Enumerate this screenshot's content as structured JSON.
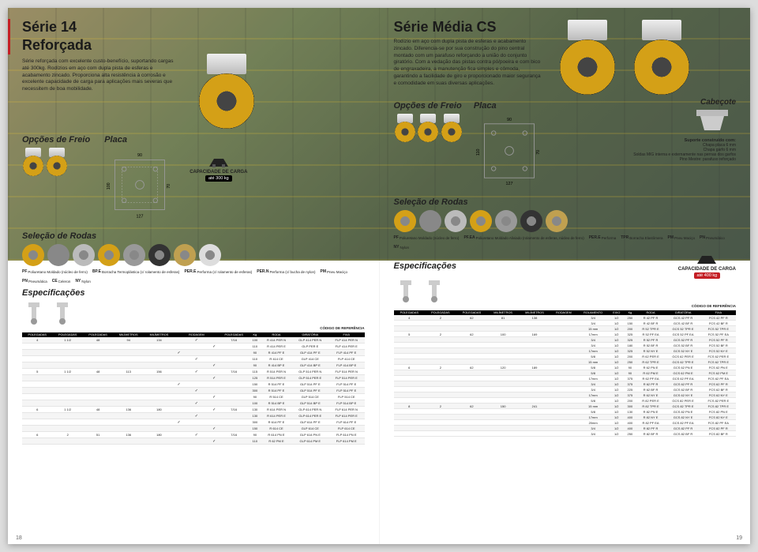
{
  "left": {
    "title1": "Série 14",
    "title2": "Reforçada",
    "intro": "Série reforçada com excelente custo-benefício, suportando cargas até 300kg. Rodízios em aço com dupla pista de esferas e acabamento zincado. Proporciona alta resistência à corrosão e excelente capacidade de carga para aplicações mais severas que necessitem de boa mobilidade.",
    "opcoes": "Opções de Freio",
    "placa": "Placa",
    "placa_w": "90",
    "placa_h": "100",
    "placa_holes_w": "127",
    "placa_holes_h": "70",
    "cap_label": "CAPACIDADE DE CARGA",
    "cap_value": "até 300 kg",
    "selecao": "Seleção de Rodas",
    "legend": [
      {
        "code": "PF",
        "desc": "Poliuretano Moldado (núcleo de ferro)"
      },
      {
        "code": "BP.E",
        "desc": "Borracha Termoplástica (c/ rolamento de esferas)"
      },
      {
        "code": "PER.E",
        "desc": "Performa (c/ rolamento de esferas)"
      },
      {
        "code": "PER.N",
        "desc": "Performa (c/ bucha de nylon)"
      },
      {
        "code": "PM",
        "desc": "Pneu Maciço"
      },
      {
        "code": "PN",
        "desc": "Pneumática"
      },
      {
        "code": "CE",
        "desc": "Celeron"
      },
      {
        "code": "NY",
        "desc": "Nylon"
      }
    ],
    "espec": "Especificações",
    "codigo": "CÓDIGO DE REFERÊNCIA",
    "headers": [
      "POLEGADAS",
      "POLEGADAS",
      "POLEGADAS",
      "MILÍMETROS",
      "MILÍMETROS",
      "",
      "RODAGEM",
      "",
      "POLEGADAS",
      "Kg",
      "RODA",
      "GIRATÓRIA",
      "FIXA"
    ],
    "rows": [
      [
        "4",
        "1 1/2",
        "48",
        "94",
        "134",
        "",
        "✓",
        "",
        "7/16",
        "100",
        "R 414 PER N",
        "GLP 414 PER N",
        "FLP 414 PER N"
      ],
      [
        "",
        "",
        "",
        "",
        "",
        "",
        "",
        "✓",
        "",
        "110",
        "R 414 PER E",
        "GLP PER E",
        "FLP 414 PER E"
      ],
      [
        "",
        "",
        "",
        "",
        "",
        "✓",
        "",
        "",
        "",
        "90",
        "R 414 PF E",
        "GLP 414 PF E",
        "FLP 414 PF E"
      ],
      [
        "",
        "",
        "",
        "",
        "",
        "",
        "✓",
        "",
        "",
        "110",
        "R 414 CE",
        "GLP 414 CE",
        "FLP 414 CE"
      ],
      [
        "",
        "",
        "",
        "",
        "",
        "",
        "",
        "✓",
        "",
        "90",
        "R 414 BP E",
        "GLP 414 BP E",
        "FLP 414 BP E"
      ],
      [
        "5",
        "1 1/2",
        "48",
        "113",
        "156",
        "",
        "✓",
        "",
        "7/16",
        "115",
        "R 514 PER N",
        "GLP 514 PER N",
        "FLP 514 PER N"
      ],
      [
        "",
        "",
        "",
        "",
        "",
        "",
        "",
        "✓",
        "",
        "125",
        "R 514 PER E",
        "GLP 514 PER E",
        "FLP 514 PER E"
      ],
      [
        "",
        "",
        "",
        "",
        "",
        "✓",
        "",
        "",
        "",
        "150",
        "R 514 PF E",
        "GLP 514 PF E",
        "FLP 514 PF E"
      ],
      [
        "",
        "",
        "",
        "",
        "",
        "",
        "✓",
        "",
        "",
        "300",
        "R 514 PF E",
        "GLP 514 PF E",
        "FLP 514 PF E"
      ],
      [
        "",
        "",
        "",
        "",
        "",
        "",
        "",
        "✓",
        "",
        "90",
        "R 514 CE",
        "GLP 514 CE",
        "FLP 514 CE"
      ],
      [
        "",
        "",
        "",
        "",
        "",
        "",
        "✓",
        "",
        "",
        "100",
        "R 514 BP E",
        "GLP 514 BP E",
        "FLP 514 BP E"
      ],
      [
        "6",
        "1 1/2",
        "48",
        "136",
        "180",
        "",
        "",
        "✓",
        "7/16",
        "130",
        "R 614 PER N",
        "GLP 614 PER N",
        "FLP 614 PER N"
      ],
      [
        "",
        "",
        "",
        "",
        "",
        "",
        "✓",
        "",
        "",
        "130",
        "R 614 PER E",
        "GLP 614 PER E",
        "FLP 614 PER E"
      ],
      [
        "",
        "",
        "",
        "",
        "",
        "✓",
        "",
        "",
        "",
        "300",
        "R 614 PF E",
        "GLP 614 PF E",
        "FLP 614 PF E"
      ],
      [
        "",
        "",
        "",
        "",
        "",
        "",
        "",
        "✓",
        "",
        "150",
        "R 614 CE",
        "GLP 614 CE",
        "FLP 614 CE"
      ],
      [
        "6",
        "2",
        "51",
        "136",
        "180",
        "",
        "✓",
        "",
        "7/16",
        "90",
        "R 614 PN E",
        "GLP 614 PN E",
        "FLP 614 PN E"
      ],
      [
        "",
        "",
        "",
        "",
        "",
        "",
        "",
        "✓",
        "",
        "110",
        "R 62 PM E",
        "GLP 614 PM E",
        "FLP 614 PM E"
      ]
    ],
    "pagenum": "18"
  },
  "right": {
    "title": "Série Média CS",
    "intro": "Rodízio em aço com dupla pista de esferas e acabamento zincado. Diferencia-se por sua construção do pino central montado com um parafuso reforçando a união do conjunto giratório. Com a vedação das pistas contra pó/poeira e com bico de engraxadeira, a manutenção fica simples e cômoda, garantindo a facilidade de giro e proporcionado maior segurança e comodidade em suas diversas aplicações.",
    "placa": "Placa",
    "placa_w": "90",
    "placa_h": "110",
    "placa_holes_w": "127",
    "placa_holes_h": "70",
    "opcoes": "Opções de Freio",
    "cabecote": "Cabeçote",
    "suporte_title": "Suporte construído com:",
    "suporte_lines": [
      "Chapa placa 6 mm",
      "Chapa garfo 6 mm",
      "Soldas MIG interna e externamente nas pernas dos garfos",
      "Pino Mestre: parafuso reforçado"
    ],
    "selecao": "Seleção de Rodas",
    "legend": [
      {
        "code": "PF",
        "desc": "Poliuretano Moldado (núcleo de ferro)"
      },
      {
        "code": "PF.EA",
        "desc": "Poliuretano Moldado Aliviado (rolamento de esferas, núcleo de ferro)"
      },
      {
        "code": "PER.E",
        "desc": "Performa"
      },
      {
        "code": "TPR",
        "desc": "Borracha Elastômera"
      },
      {
        "code": "PM",
        "desc": "Pneu Maciço"
      },
      {
        "code": "PN",
        "desc": "Pneumático"
      },
      {
        "code": "NY",
        "desc": "Nylon"
      }
    ],
    "espec": "Especificações",
    "cap_label": "CAPACIDADE DE CARGA",
    "cap_value": "até 400 kg",
    "codigo": "CÓDIGO DE REFERÊNCIA",
    "headers": [
      "POLEGADAS",
      "POLEGADAS",
      "POLEGADAS",
      "MILÍMETROS",
      "MILÍMETROS",
      "RODAGEM",
      "ROLAMENTO",
      "EIXO",
      "Kg",
      "RODA",
      "GIRATÓRIA",
      "FIXA"
    ],
    "rows": [
      [
        "4",
        "2",
        "62",
        "81",
        "138",
        "",
        "3/4",
        "1/2",
        "250",
        "R 42 PF R",
        "GCS 42 PF R",
        "FCS 42 PF R"
      ],
      [
        "",
        "",
        "",
        "",
        "",
        "",
        "3/4",
        "1/2",
        "150",
        "R 42 BF R",
        "GCS 42 BF R",
        "FCS 42 BF R"
      ],
      [
        "",
        "",
        "",
        "",
        "",
        "",
        "15 mm",
        "1/2",
        "200",
        "R 52 TPR E",
        "GCS 52 TPR E",
        "FCS 52 TPR E"
      ],
      [
        "5",
        "2",
        "62",
        "100",
        "169",
        "",
        "17mm",
        "1/2",
        "325",
        "R 52 PF EA",
        "GCS 52 PF EA",
        "FCS 52 PF EA"
      ],
      [
        "",
        "",
        "",
        "",
        "",
        "",
        "3/4",
        "1/2",
        "325",
        "R 52 PF R",
        "GCS 52 PF R",
        "FCS 52 PF R"
      ],
      [
        "",
        "",
        "",
        "",
        "",
        "",
        "3/4",
        "1/2",
        "180",
        "R 52 BF R",
        "GCS 52 BF R",
        "FCS 52 BF R"
      ],
      [
        "",
        "",
        "",
        "",
        "",
        "",
        "17mm",
        "1/2",
        "325",
        "R 52 NY E",
        "GCS 52 NY E",
        "FCS 52 NY E"
      ],
      [
        "",
        "",
        "",
        "",
        "",
        "",
        "5/8",
        "1/2",
        "200",
        "R 62 PER E",
        "GCS 62 PER E",
        "FCS 62 PER E"
      ],
      [
        "",
        "",
        "",
        "",
        "",
        "",
        "15 mm",
        "1/2",
        "250",
        "R 62 TPR E",
        "GCS 62 TPR E",
        "FCS 62 TPR E"
      ],
      [
        "6",
        "2",
        "62",
        "120",
        "189",
        "",
        "5/8",
        "1/2",
        "90",
        "R 62 PN E",
        "GCS 62 PN E",
        "FCS 62 PN E"
      ],
      [
        "",
        "",
        "",
        "",
        "",
        "",
        "5/8",
        "1/2",
        "90",
        "R 62 PM E",
        "GCS 62 PM E",
        "FCS 62 PM E"
      ],
      [
        "",
        "",
        "",
        "",
        "",
        "",
        "17mm",
        "1/2",
        "375",
        "R 62 PF EA",
        "GCS 62 PF EA",
        "FCS 62 PF EA"
      ],
      [
        "",
        "",
        "",
        "",
        "",
        "",
        "3/4",
        "1/2",
        "375",
        "R 62 PF R",
        "GCS 62 PF R",
        "FCS 62 PF R"
      ],
      [
        "",
        "",
        "",
        "",
        "",
        "",
        "3/4",
        "1/2",
        "225",
        "R 62 BF R",
        "GCS 62 BF R",
        "FCS 62 BF R"
      ],
      [
        "",
        "",
        "",
        "",
        "",
        "",
        "17mm",
        "1/2",
        "375",
        "R 62 NY E",
        "GCS 62 NY E",
        "FCS 62 NY E"
      ],
      [
        "",
        "",
        "",
        "",
        "",
        "",
        "5/8",
        "1/2",
        "200",
        "R 82 PER E",
        "GCS 82 PER E",
        "FCS 82 PER E"
      ],
      [
        "8",
        "2",
        "62",
        "150",
        "241",
        "",
        "15 mm",
        "1/2",
        "300",
        "R 82 TPR E",
        "GCS 82 TPR E",
        "FCS 82 TPR E"
      ],
      [
        "",
        "",
        "",
        "",
        "",
        "",
        "5/8",
        "1/2",
        "130",
        "R 82 PN E",
        "GCS 82 PN E",
        "FCS 82 PN E"
      ],
      [
        "",
        "",
        "",
        "",
        "",
        "",
        "17mm",
        "1/2",
        "400",
        "R 82 NY E",
        "GCS 82 NY E",
        "FCS 82 NY E"
      ],
      [
        "",
        "",
        "",
        "",
        "",
        "",
        "20mm",
        "1/2",
        "400",
        "R 82 PF EA",
        "GCS 82 PF EA",
        "FCS 82 PF EA"
      ],
      [
        "",
        "",
        "",
        "",
        "",
        "",
        "3/4",
        "1/2",
        "400",
        "R 82 PF R",
        "GCS 82 PF R",
        "FCS 82 PF R"
      ],
      [
        "",
        "",
        "",
        "",
        "",
        "",
        "3/4",
        "1/2",
        "250",
        "R 82 BF R",
        "GCS 82 BF R",
        "FCS 82 BF R"
      ]
    ],
    "pagenum": "19"
  },
  "wheel_colors": [
    "#d4a017",
    "#888",
    "#bbb",
    "#d4a017",
    "#999",
    "#333",
    "#c0a050",
    "#ddd"
  ]
}
